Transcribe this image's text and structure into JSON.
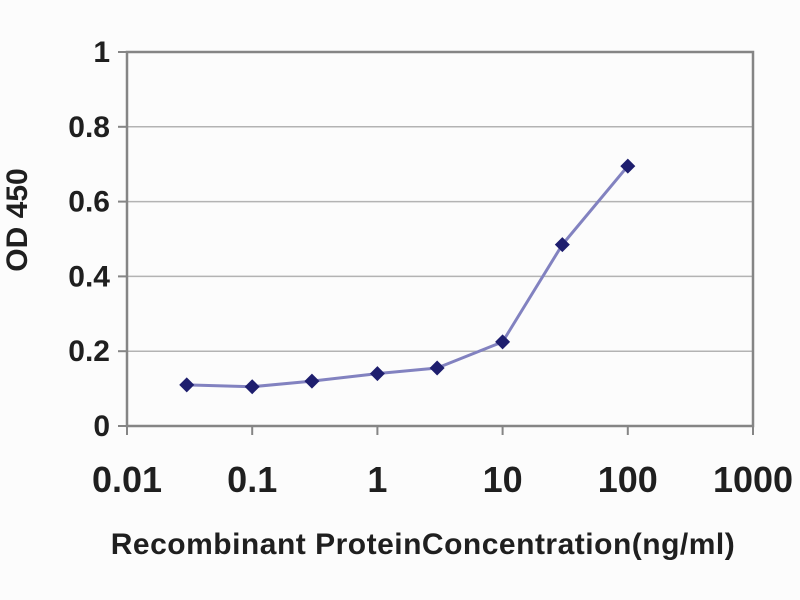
{
  "figure": {
    "background_color": "#fcfcfc"
  },
  "chart_data": {
    "type": "line",
    "title": "",
    "xlabel": "Recombinant ProteinConcentration(ng/ml)",
    "ylabel": "OD 450",
    "x_scale": "log",
    "xlim": [
      0.01,
      1000
    ],
    "ylim": [
      0,
      1
    ],
    "x_ticks": [
      "0.01",
      "0.1",
      "1",
      "10",
      "100",
      "1000"
    ],
    "y_ticks": [
      "0",
      "0.2",
      "0.4",
      "0.6",
      "0.8",
      "1"
    ],
    "grid": "horizontal-only",
    "legend_position": "none",
    "x": [
      0.03,
      0.1,
      0.3,
      1,
      3,
      10,
      30,
      100
    ],
    "series": [
      {
        "name": "OD 450",
        "values": [
          0.11,
          0.105,
          0.12,
          0.14,
          0.155,
          0.225,
          0.485,
          0.695
        ]
      }
    ],
    "colors": {
      "line": "#8282c0",
      "marker": "#1e1e6e",
      "axis_border": "#858585",
      "gridline": "#b3b3b3",
      "tick": "#858585",
      "text": "#1f1f1f"
    }
  }
}
